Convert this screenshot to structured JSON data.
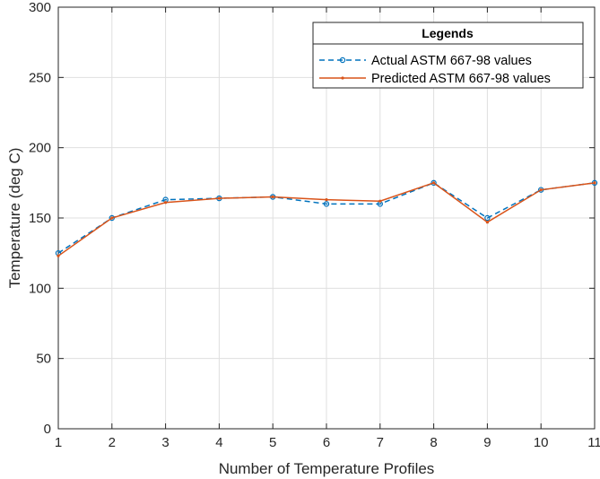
{
  "chart_data": {
    "type": "line",
    "xlabel": "Number of Temperature Profiles",
    "ylabel": "Temperature (deg C)",
    "xlim": [
      1,
      11
    ],
    "ylim": [
      0,
      300
    ],
    "x": [
      1,
      2,
      3,
      4,
      5,
      6,
      7,
      8,
      9,
      10,
      11
    ],
    "xticks": [
      1,
      2,
      3,
      4,
      5,
      6,
      7,
      8,
      9,
      10,
      11
    ],
    "yticks": [
      0,
      50,
      100,
      150,
      200,
      250,
      300
    ],
    "grid": true,
    "legend": {
      "title": "Legends",
      "placement": "top-right"
    },
    "series": [
      {
        "name": "Actual ASTM 667-98 values",
        "values": [
          125,
          150,
          163,
          164,
          165,
          160,
          160,
          175,
          150,
          170,
          175
        ],
        "color": "#0072BD",
        "line_style": "dashed",
        "marker": "circle"
      },
      {
        "name": "Predicted ASTM 667-98 values",
        "values": [
          123,
          150,
          161,
          164,
          165,
          163,
          162,
          175,
          147,
          170,
          175
        ],
        "color": "#D95319",
        "line_style": "solid",
        "marker": "point"
      }
    ]
  }
}
